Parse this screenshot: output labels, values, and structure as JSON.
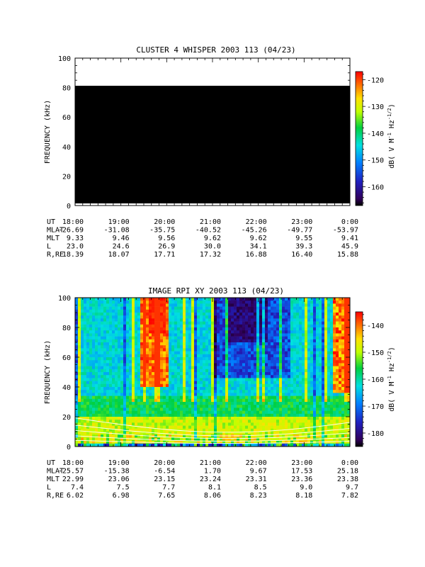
{
  "panels": [
    {
      "title": "CLUSTER 4 WHISPER 2003 113 (04/23)",
      "ylabel": "FREQUENCY (kHz)",
      "ylim": [
        0,
        100
      ],
      "y_ticks": [
        "0",
        "20",
        "40",
        "60",
        "80",
        "100"
      ],
      "colorbar": {
        "ticks": [
          "-120",
          "-130",
          "-140",
          "-150",
          "-160"
        ],
        "range": [
          -167,
          -117
        ],
        "label": "dB( V M",
        "label_sup1": "-1",
        "label_mid": " Hz",
        "label_sup2": "-1/2",
        "label_end": ")"
      },
      "ephemeris": {
        "row_labels": [
          "UT",
          "MLAT",
          "MLT",
          "L",
          "R,RE"
        ],
        "columns": [
          [
            "18:00",
            "-26.69",
            "9.33",
            "23.0",
            "18.39"
          ],
          [
            "19:00",
            "-31.08",
            "9.46",
            "24.6",
            "18.07"
          ],
          [
            "20:00",
            "-35.75",
            "9.56",
            "26.9",
            "17.71"
          ],
          [
            "21:00",
            "-40.52",
            "9.62",
            "30.0",
            "17.32"
          ],
          [
            "22:00",
            "-45.26",
            "9.62",
            "34.1",
            "16.88"
          ],
          [
            "23:00",
            "-49.77",
            "9.55",
            "39.3",
            "16.40"
          ],
          [
            "0:00",
            "-53.97",
            "9.41",
            "45.9",
            "15.88"
          ]
        ]
      }
    },
    {
      "title": "IMAGE RPI XY 2003 113 (04/23)",
      "ylabel": "FREQUENCY (kHz)",
      "ylim": [
        0,
        100
      ],
      "y_ticks": [
        "0",
        "20",
        "40",
        "60",
        "80",
        "100"
      ],
      "colorbar": {
        "ticks": [
          "-140",
          "-150",
          "-160",
          "-170",
          "-180"
        ],
        "range": [
          -185,
          -135
        ],
        "label": "dB( V M",
        "label_sup1": "-1",
        "label_mid": " Hz",
        "label_sup2": "-1/2",
        "label_end": ")"
      },
      "ephemeris": {
        "row_labels": [
          "UT",
          "MLAT",
          "MLT",
          "L",
          "R,RE"
        ],
        "columns": [
          [
            "18:00",
            "-25.57",
            "22.99",
            "7.4",
            "6.02"
          ],
          [
            "19:00",
            "-15.38",
            "23.06",
            "7.5",
            "6.98"
          ],
          [
            "20:00",
            "-6.54",
            "23.15",
            "7.7",
            "7.65"
          ],
          [
            "21:00",
            "1.70",
            "23.24",
            "8.1",
            "8.06"
          ],
          [
            "22:00",
            "9.67",
            "23.31",
            "8.5",
            "8.23"
          ],
          [
            "23:00",
            "17.53",
            "23.36",
            "9.0",
            "8.18"
          ],
          [
            "0:00",
            "25.18",
            "23.38",
            "9.7",
            "7.82"
          ]
        ]
      }
    }
  ],
  "chart_data": [
    {
      "type": "heatmap",
      "title": "CLUSTER 4 WHISPER 2003 113 (04/23)",
      "ylabel": "FREQUENCY (kHz)",
      "x_ticks": [
        "18:00",
        "19:00",
        "20:00",
        "21:00",
        "22:00",
        "23:00",
        "0:00"
      ],
      "ylim": [
        0,
        100
      ],
      "data_frequency_range_kHz": [
        0,
        80
      ],
      "colorbar_range_dB": [
        -167,
        -117
      ],
      "note_value_dB": -167
    },
    {
      "type": "heatmap",
      "title": "IMAGE RPI XY 2003 113 (04/23)",
      "ylabel": "FREQUENCY (kHz)",
      "x_ticks": [
        "18:00",
        "19:00",
        "20:00",
        "21:00",
        "22:00",
        "23:00",
        "0:00"
      ],
      "ylim": [
        0,
        100
      ],
      "colorbar_range_dB": [
        -185,
        -135
      ],
      "colorscale": "rainbow"
    }
  ]
}
